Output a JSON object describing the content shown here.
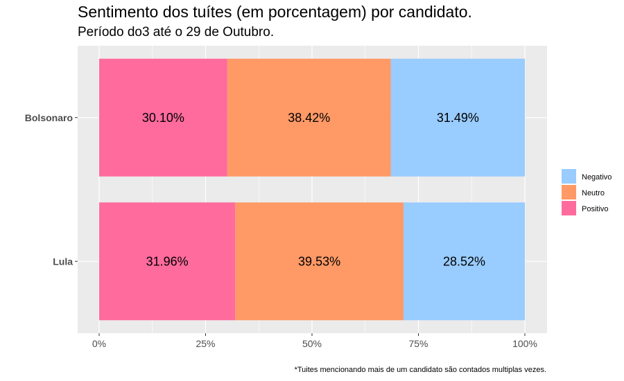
{
  "chart_data": {
    "type": "bar",
    "orientation": "horizontal",
    "stacked": true,
    "title": "Sentimento dos tuítes (em porcentagem) por candidato.",
    "subtitle": "Período do3 até o 29 de Outubro.",
    "caption": "*Tuites mencionando mais de um candidato são contados multiplas vezes.",
    "xlabel": "",
    "ylabel": "",
    "categories": [
      "Bolsonaro",
      "Lula"
    ],
    "xlim": [
      0,
      100
    ],
    "x_ticks": [
      "0%",
      "25%",
      "50%",
      "75%",
      "100%"
    ],
    "grid": true,
    "legend_position": "right",
    "series": [
      {
        "name": "Positivo",
        "color": "#FF6B9D",
        "values": [
          30.1,
          31.96
        ],
        "labels": [
          "30.10%",
          "31.96%"
        ]
      },
      {
        "name": "Neutro",
        "color": "#FF9966",
        "values": [
          38.42,
          39.53
        ],
        "labels": [
          "38.42%",
          "39.53%"
        ]
      },
      {
        "name": "Negativo",
        "color": "#99CCFF",
        "values": [
          31.49,
          28.52
        ],
        "labels": [
          "31.49%",
          "28.52%"
        ]
      }
    ],
    "legend_order": [
      "Negativo",
      "Neutro",
      "Positivo"
    ]
  }
}
